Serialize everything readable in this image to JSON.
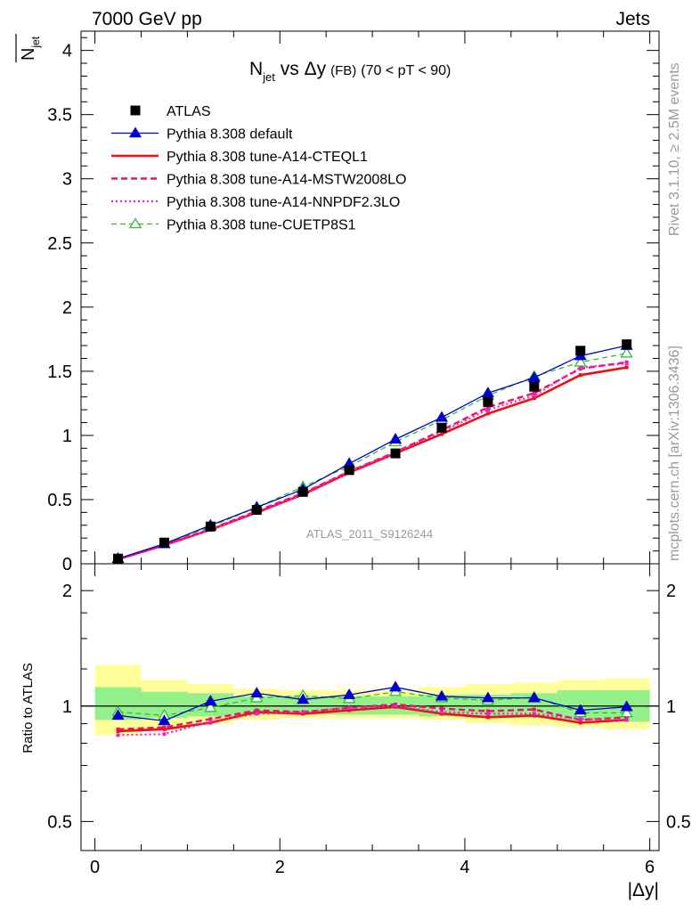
{
  "header": {
    "left": "7000 GeV pp",
    "right": "Jets"
  },
  "side_labels": {
    "rivet": "Rivet 3.1.10, ≥ 2.5M events",
    "mcplots": "mcplots.cern.ch [arXiv:1306.3436]"
  },
  "watermark": "ATLAS_2011_S9126244",
  "chart_data": [
    {
      "type": "line",
      "panel": "main",
      "title_main": "N",
      "title_sub": "jet",
      "title_rest": " vs Δy",
      "title_small": "(FB)",
      "title_range": "(70 < pT <  90)",
      "ylabel_main": "N",
      "ylabel_sub": "jet",
      "xlabel": "|Δy|",
      "xlim": [
        -0.15,
        6.1
      ],
      "ylim": [
        0,
        4.15
      ],
      "y_ticks": [
        0,
        0.5,
        1,
        1.5,
        2,
        2.5,
        3,
        3.5,
        4
      ],
      "y_tick_labels": [
        "0",
        "0.5",
        "1",
        "1.5",
        "2",
        "2.5",
        "3",
        "3.5",
        "4"
      ],
      "x": [
        0.25,
        0.75,
        1.25,
        1.75,
        2.25,
        2.75,
        3.25,
        3.75,
        4.25,
        4.75,
        5.25,
        5.75
      ],
      "series": [
        {
          "name": "ATLAS",
          "style": "data",
          "color": "#000000",
          "values": [
            0.04,
            0.165,
            0.29,
            0.42,
            0.56,
            0.73,
            0.86,
            1.06,
            1.26,
            1.38,
            1.66,
            1.71
          ]
        },
        {
          "name": "Pythia 8.308 default",
          "style": "solid-triangle",
          "color": "#0000cc",
          "values": [
            0.04,
            0.155,
            0.3,
            0.44,
            0.58,
            0.78,
            0.97,
            1.14,
            1.33,
            1.45,
            1.62,
            1.7
          ]
        },
        {
          "name": "Pythia 8.308 tune-A14-CTEQL1",
          "style": "solid-thick",
          "color": "#ee1111",
          "values": [
            0.035,
            0.145,
            0.265,
            0.4,
            0.54,
            0.71,
            0.86,
            1.01,
            1.17,
            1.29,
            1.47,
            1.53
          ]
        },
        {
          "name": "Pythia 8.308 tune-A14-MSTW2008LO",
          "style": "dashed",
          "color": "#ee1166",
          "values": [
            0.035,
            0.15,
            0.27,
            0.41,
            0.55,
            0.72,
            0.87,
            1.04,
            1.22,
            1.33,
            1.52,
            1.57
          ]
        },
        {
          "name": "Pythia 8.308 tune-A14-NNPDF2.3LO",
          "style": "dotted",
          "color": "#ee22cc",
          "values": [
            0.034,
            0.142,
            0.265,
            0.4,
            0.545,
            0.72,
            0.865,
            1.03,
            1.2,
            1.31,
            1.53,
            1.56
          ]
        },
        {
          "name": "Pythia 8.308 tune-CUETP8S1",
          "style": "dashed-open-triangle",
          "color": "#22bb22",
          "values": [
            0.039,
            0.157,
            0.29,
            0.44,
            0.6,
            0.76,
            0.95,
            1.12,
            1.31,
            1.46,
            1.57,
            1.64
          ]
        }
      ]
    },
    {
      "type": "line",
      "panel": "ratio",
      "ylabel": "Ratio to ATLAS",
      "xlabel": "|Δy|",
      "xlim": [
        -0.15,
        6.1
      ],
      "ylim": [
        0.42,
        2.35
      ],
      "y_ticks": [
        0.5,
        1,
        2
      ],
      "y_tick_labels": [
        "0.5",
        "1",
        "2"
      ],
      "x_ticks": [
        0,
        2,
        4,
        6
      ],
      "x_tick_labels": [
        "0",
        "2",
        "4",
        "6"
      ],
      "x": [
        0.25,
        0.75,
        1.25,
        1.75,
        2.25,
        2.75,
        3.25,
        3.75,
        4.25,
        4.75,
        5.25,
        5.75
      ],
      "bin_edges": [
        0,
        0.5,
        1,
        1.5,
        2,
        2.5,
        3,
        3.5,
        4,
        4.5,
        5,
        5.5,
        6
      ],
      "band_inner": [
        [
          0.92,
          1.12
        ],
        [
          0.93,
          1.09
        ],
        [
          0.94,
          1.08
        ],
        [
          0.95,
          1.06
        ],
        [
          0.95,
          1.06
        ],
        [
          0.95,
          1.06
        ],
        [
          0.95,
          1.06
        ],
        [
          0.94,
          1.07
        ],
        [
          0.93,
          1.07
        ],
        [
          0.93,
          1.08
        ],
        [
          0.92,
          1.1
        ],
        [
          0.91,
          1.1
        ]
      ],
      "band_outer": [
        [
          0.84,
          1.28
        ],
        [
          0.87,
          1.17
        ],
        [
          0.9,
          1.14
        ],
        [
          0.92,
          1.11
        ],
        [
          0.93,
          1.1
        ],
        [
          0.93,
          1.1
        ],
        [
          0.93,
          1.1
        ],
        [
          0.92,
          1.12
        ],
        [
          0.9,
          1.14
        ],
        [
          0.89,
          1.15
        ],
        [
          0.88,
          1.17
        ],
        [
          0.87,
          1.18
        ]
      ],
      "series": [
        {
          "name": "Pythia 8.308 default",
          "style": "solid-triangle",
          "color": "#0000cc",
          "values": [
            0.945,
            0.915,
            1.03,
            1.08,
            1.04,
            1.07,
            1.12,
            1.06,
            1.05,
            1.05,
            0.975,
            0.995
          ]
        },
        {
          "name": "Pythia 8.308 tune-A14-CTEQL1",
          "style": "solid-thick",
          "color": "#ee1111",
          "values": [
            0.86,
            0.87,
            0.905,
            0.965,
            0.955,
            0.975,
            0.995,
            0.955,
            0.935,
            0.945,
            0.905,
            0.92
          ]
        },
        {
          "name": "Pythia 8.308 tune-A14-MSTW2008LO",
          "style": "dashed",
          "color": "#ee1166",
          "values": [
            0.87,
            0.88,
            0.925,
            0.975,
            0.965,
            0.99,
            1.01,
            0.985,
            0.97,
            0.98,
            0.92,
            0.935
          ]
        },
        {
          "name": "Pythia 8.308 tune-A14-NNPDF2.3LO",
          "style": "dotted",
          "color": "#ee22cc",
          "values": [
            0.84,
            0.845,
            0.91,
            0.955,
            0.965,
            0.99,
            1.0,
            0.965,
            0.955,
            0.955,
            0.925,
            0.92
          ]
        },
        {
          "name": "Pythia 8.308 tune-CUETP8S1",
          "style": "dashed-open-triangle",
          "color": "#22bb22",
          "values": [
            0.965,
            0.945,
            0.99,
            1.05,
            1.065,
            1.045,
            1.09,
            1.05,
            1.035,
            1.055,
            0.96,
            0.96
          ]
        }
      ]
    }
  ]
}
